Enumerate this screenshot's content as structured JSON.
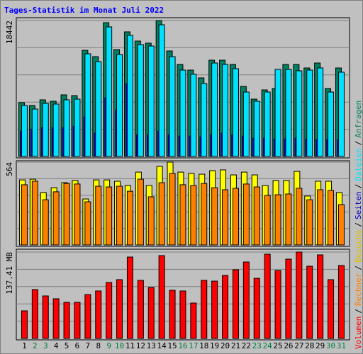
{
  "title": "Tages-Statistik im Monat Juli 2022",
  "legend_separator": "/",
  "chart_data": [
    {
      "type": "bar",
      "ylim": [
        0,
        18442
      ],
      "yticks": [
        18442
      ],
      "grid_lines": [
        3688.4,
        7376.8,
        11065.2,
        14753.6
      ],
      "series": [
        {
          "name": "Anfragen",
          "color": "#008060",
          "values": [
            7300,
            6916,
            7684,
            7492,
            8357,
            8260,
            14408,
            13544,
            18154,
            14504,
            16906,
            15657,
            15368,
            18442,
            14312,
            12487,
            11719,
            10662,
            13063,
            13063,
            12487,
            9509,
            7780,
            9029,
            9221,
            12487,
            12487,
            12007,
            12679,
            9221,
            12007
          ]
        },
        {
          "name": "Dateien",
          "color": "#00e0ff",
          "values": [
            6916,
            6436,
            7204,
            7108,
            7684,
            7780,
            13928,
            12871,
            17578,
            13832,
            16425,
            15176,
            14984,
            17866,
            13544,
            11719,
            11142,
            9894,
            12679,
            12487,
            11911,
            8741,
            7492,
            8741,
            11815,
            11815,
            11623,
            11719,
            12007,
            8741,
            11431
          ]
        },
        {
          "name": "Seiten",
          "color": "#0000c0",
          "values": [
            3458,
            3746,
            3938,
            3938,
            3938,
            4130,
            5379,
            3170,
            7972,
            6340,
            9894,
            2978,
            2978,
            3458,
            2978,
            2785,
            2785,
            2689,
            2978,
            3170,
            2978,
            2785,
            2497,
            2497,
            2401,
            2401,
            2497,
            2401,
            2305,
            2305,
            2305
          ]
        }
      ]
    },
    {
      "type": "bar",
      "ylim": [
        0,
        564
      ],
      "yticks": [
        564
      ],
      "grid_lines": [
        112.8,
        225.6,
        338.4,
        451.2
      ],
      "series": [
        {
          "name": "Besuche",
          "color": "#ffff00",
          "values": [
            443,
            448,
            357,
            390,
            424,
            439,
            313,
            443,
            443,
            434,
            405,
            496,
            405,
            535,
            564,
            496,
            487,
            482,
            506,
            511,
            477,
            496,
            477,
            405,
            439,
            439,
            501,
            333,
            434,
            434,
            357
          ]
        },
        {
          "name": "Rechner",
          "color": "#ff8000",
          "values": [
            410,
            434,
            308,
            362,
            419,
            415,
            294,
            400,
            395,
            400,
            366,
            448,
            328,
            424,
            487,
            410,
            405,
            419,
            390,
            376,
            386,
            415,
            395,
            337,
            342,
            347,
            386,
            308,
            376,
            371,
            275
          ]
        }
      ]
    },
    {
      "type": "bar",
      "ylim": [
        0,
        137.41
      ],
      "yticks": [
        {
          "value": 137.41,
          "label": "137.41 MB"
        }
      ],
      "grid_lines": [
        27.48,
        54.96,
        82.45,
        109.93
      ],
      "categories": [
        "1",
        "2",
        "3",
        "4",
        "5",
        "6",
        "7",
        "8",
        "9",
        "10",
        "11",
        "12",
        "13",
        "14",
        "15",
        "16",
        "17",
        "18",
        "19",
        "20",
        "21",
        "22",
        "23",
        "24",
        "25",
        "26",
        "27",
        "28",
        "29",
        "30",
        "31"
      ],
      "category_colors": [
        "#000000",
        "#008040",
        "#008040",
        "#000000",
        "#000000",
        "#000000",
        "#000000",
        "#000000",
        "#008040",
        "#008040",
        "#000000",
        "#000000",
        "#000000",
        "#000000",
        "#000000",
        "#008040",
        "#008040",
        "#000000",
        "#000000",
        "#000000",
        "#000000",
        "#000000",
        "#008040",
        "#008040",
        "#000000",
        "#000000",
        "#000000",
        "#000000",
        "#000000",
        "#008040",
        "#008040"
      ],
      "series": [
        {
          "name": "Volumen",
          "color": "#ff0000",
          "values": [
            43.9,
            77.7,
            67.6,
            63.1,
            57.4,
            57.4,
            69.8,
            75.5,
            89.0,
            93.5,
            129.5,
            92.4,
            81.1,
            131.8,
            76.6,
            75.5,
            56.3,
            92.4,
            91.2,
            100.2,
            109.3,
            121.6,
            95.7,
            134.0,
            108.1,
            126.1,
            137.4,
            114.9,
            132.9,
            93.5,
            116.0
          ]
        }
      ]
    }
  ]
}
